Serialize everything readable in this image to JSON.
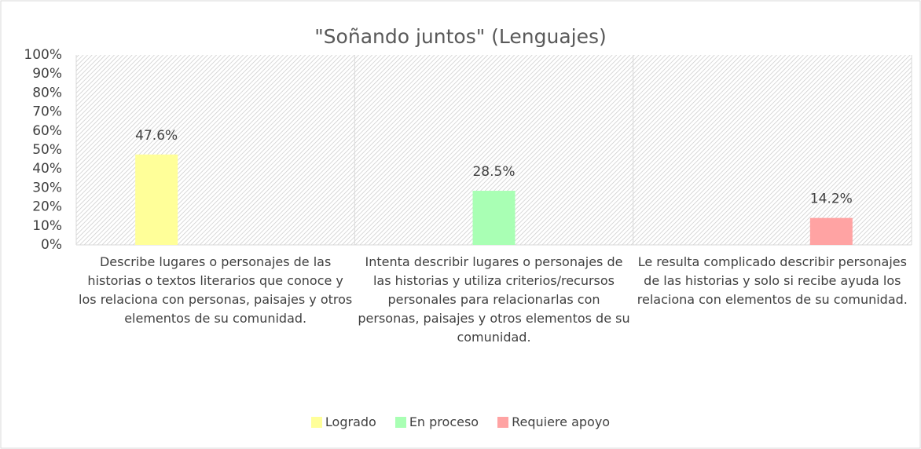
{
  "chart_data": {
    "type": "bar",
    "title": "\"Soñando juntos\" (Lenguajes)",
    "categories": [
      "Describe lugares o personajes de las historias o textos literarios que conoce y los relaciona con personas, paisajes y otros elementos de su comunidad.",
      "Intenta describir lugares o personajes de las historias y utiliza criterios/recursos personales para relacionarlas con personas, paisajes y otros elementos de su comunidad.",
      "Le resulta complicado describir personajes de las historias y solo si recibe ayuda los relaciona con elementos de su comunidad."
    ],
    "series": [
      {
        "name": "Logrado",
        "color": "#ffff99",
        "values": [
          47.6,
          null,
          null
        ],
        "value_labels": [
          "47.6%",
          null,
          null
        ]
      },
      {
        "name": "En proceso",
        "color": "#a9ffb4",
        "values": [
          null,
          28.5,
          null
        ],
        "value_labels": [
          null,
          "28.5%",
          null
        ]
      },
      {
        "name": "Requiere apoyo",
        "color": "#ffa3a3",
        "values": [
          null,
          null,
          14.2
        ],
        "value_labels": [
          null,
          null,
          "14.2%"
        ]
      }
    ],
    "ylim": [
      0,
      100
    ],
    "yticks": [
      {
        "value": 0,
        "label": "0%"
      },
      {
        "value": 10,
        "label": "10%"
      },
      {
        "value": 20,
        "label": "20%"
      },
      {
        "value": 30,
        "label": "30%"
      },
      {
        "value": 40,
        "label": "40%"
      },
      {
        "value": 50,
        "label": "50%"
      },
      {
        "value": 60,
        "label": "60%"
      },
      {
        "value": 70,
        "label": "70%"
      },
      {
        "value": 80,
        "label": "80%"
      },
      {
        "value": 90,
        "label": "90%"
      },
      {
        "value": 100,
        "label": "100%"
      }
    ],
    "legend": "bottom"
  }
}
